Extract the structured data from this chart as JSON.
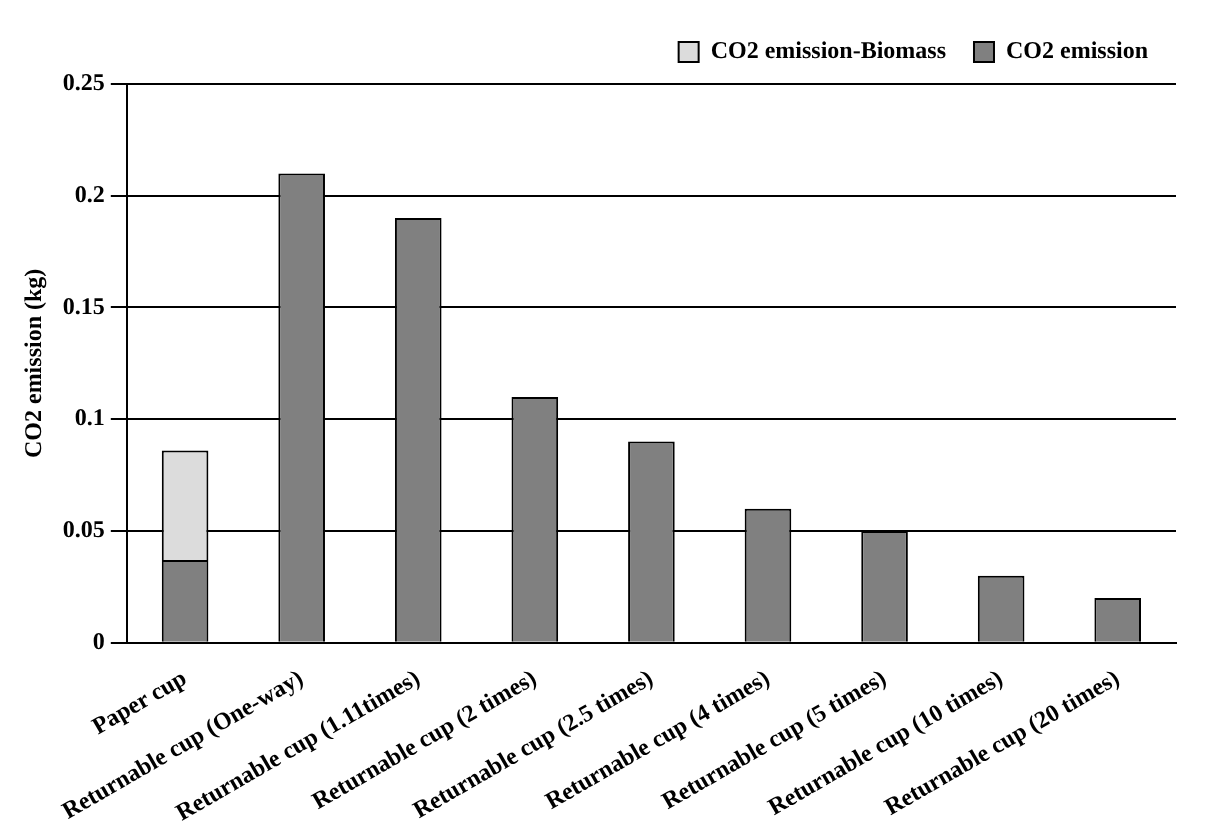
{
  "chart_data": {
    "type": "bar",
    "stacked": true,
    "ylabel": "CO2 emission (kg)",
    "categories": [
      "Paper cup",
      "Returnable cup (One-way)",
      "Returnable cup (1.11times)",
      "Returnable cup (2 times)",
      "Returnable cup (2.5 times)",
      "Returnable cup (4 times)",
      "Returnable cup (5 times)",
      "Returnable cup (10 times)",
      "Returnable cup (20 times)"
    ],
    "series": [
      {
        "name": "CO2 emission",
        "color": "#808080",
        "values": [
          0.037,
          0.21,
          0.19,
          0.11,
          0.09,
          0.06,
          0.05,
          0.03,
          0.02
        ]
      },
      {
        "name": "CO2 emission-Biomass",
        "color": "#dcdcdc",
        "values": [
          0.049,
          null,
          null,
          null,
          null,
          null,
          null,
          null,
          null
        ]
      }
    ],
    "ylim": [
      0,
      0.25
    ],
    "yticks": [
      0,
      0.05,
      0.1,
      0.15,
      0.2,
      0.25
    ],
    "grid": "y",
    "legend": "top right"
  }
}
